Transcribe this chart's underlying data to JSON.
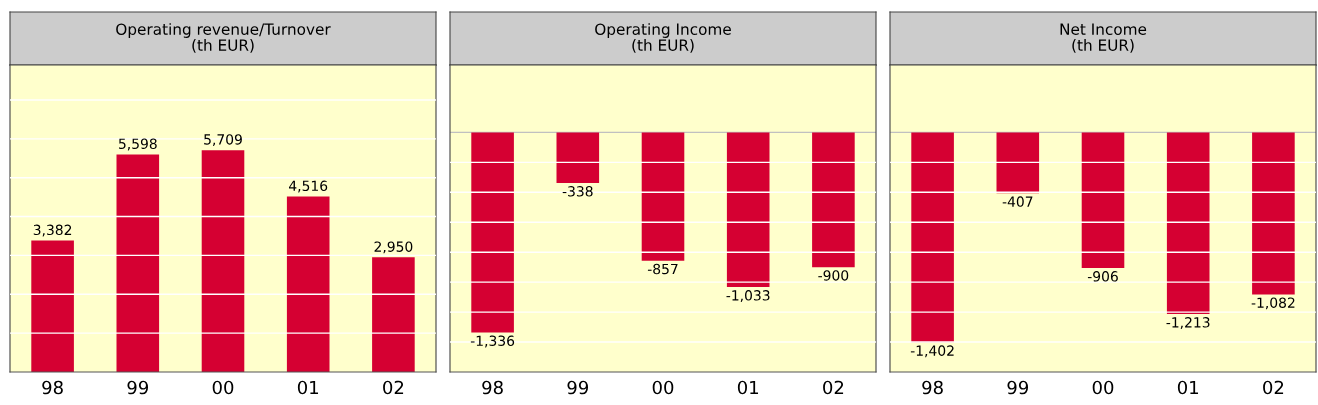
{
  "chart_data": [
    {
      "type": "bar",
      "title": "Operating revenue/Turnover\n(th EUR)",
      "categories": [
        "98",
        "99",
        "00",
        "01",
        "02"
      ],
      "values": [
        3382,
        5598,
        5709,
        4516,
        2950
      ],
      "color": "#d50032",
      "value_labels": [
        "3,382",
        "5,598",
        "5,709",
        "4,516",
        "2,950"
      ],
      "ylim": [
        0,
        7900
      ],
      "yticks": [
        {
          "value": 1000,
          "label": null
        },
        {
          "value": 2000,
          "label": null
        },
        {
          "value": 3000,
          "label": null
        },
        {
          "value": 4000,
          "label": null
        },
        {
          "value": 5000,
          "label": null
        },
        {
          "value": 6000,
          "label": null
        },
        {
          "value": 7000,
          "label": null
        }
      ],
      "grid": "y",
      "tick_labels": "x"
    },
    {
      "type": "bar",
      "title": "Operating Income\n(th EUR)",
      "categories": [
        "98",
        "99",
        "00",
        "01",
        "02"
      ],
      "values": [
        -1336,
        -338,
        -857,
        -1033,
        -900
      ],
      "color": "#d50032",
      "value_labels": [
        "-1,336",
        "-338",
        "-857",
        "-1,033",
        "-900"
      ],
      "ylim": [
        -1600,
        450
      ],
      "yticks": [
        {
          "value": -1400,
          "label": null
        },
        {
          "value": -1200,
          "label": null
        },
        {
          "value": -1000,
          "label": null
        },
        {
          "value": -800,
          "label": null
        },
        {
          "value": -600,
          "label": null
        },
        {
          "value": -400,
          "label": null
        },
        {
          "value": -200,
          "label": null
        }
      ],
      "grid": "y",
      "tick_labels": "x",
      "ref_lines": [
        {
          "axis": "y",
          "value": 0,
          "color": "#c0c0c0"
        }
      ]
    },
    {
      "type": "bar",
      "title": "Net Income\n(th EUR)",
      "categories": [
        "98",
        "99",
        "00",
        "01",
        "02"
      ],
      "values": [
        -1402,
        -407,
        -906,
        -1213,
        -1082
      ],
      "color": "#d50032",
      "value_labels": [
        "-1,402",
        "-407",
        "-906",
        "-1,213",
        "-1,082"
      ],
      "ylim": [
        -1600,
        450
      ],
      "yticks": [
        {
          "value": -1400,
          "label": null
        },
        {
          "value": -1200,
          "label": null
        },
        {
          "value": -1000,
          "label": null
        },
        {
          "value": -800,
          "label": null
        },
        {
          "value": -600,
          "label": null
        },
        {
          "value": -400,
          "label": null
        },
        {
          "value": -200,
          "label": null
        }
      ],
      "grid": "y",
      "tick_labels": "x",
      "ref_lines": [
        {
          "axis": "y",
          "value": 0,
          "color": "#c0c0c0"
        }
      ]
    }
  ]
}
